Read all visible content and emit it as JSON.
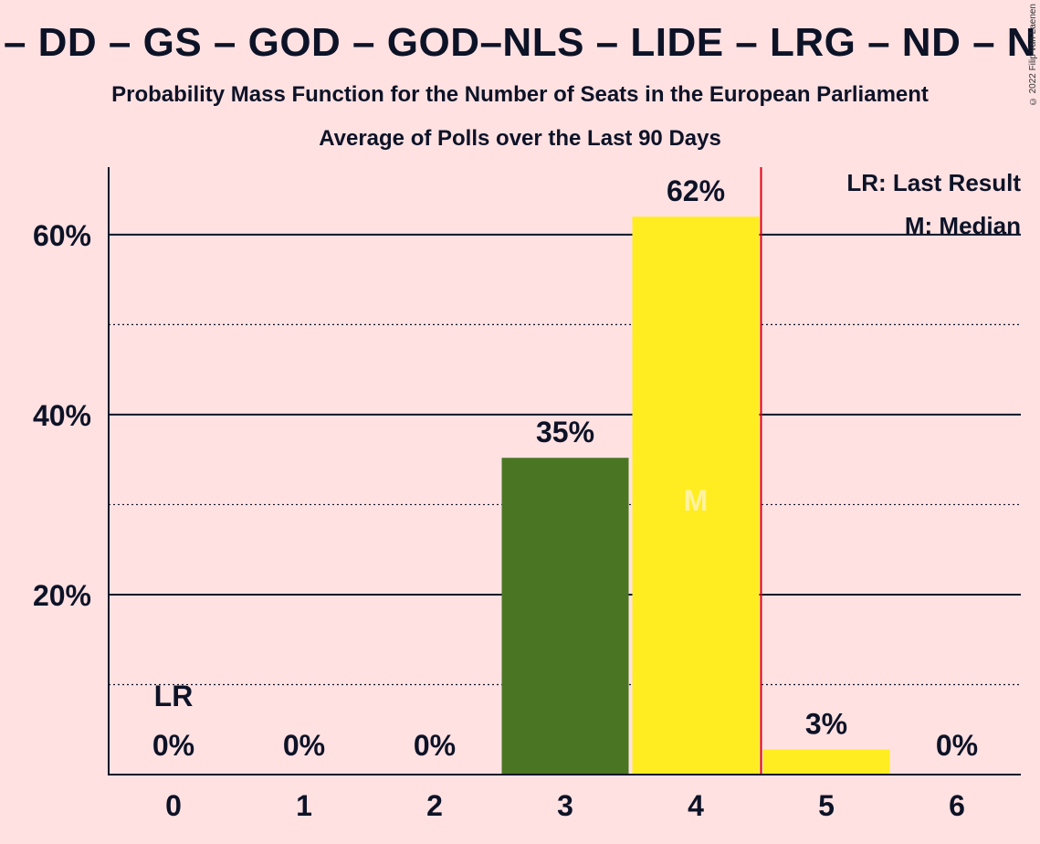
{
  "title": "– DD – GS – GOD – GOD–NLS – LIDE – LRG – ND – N",
  "subtitle": "Probability Mass Function for the Number of Seats in the European Parliament",
  "subtitle2": "Average of Polls over the Last 90 Days",
  "copyright": "© 2022 Filip van Laenen",
  "legend": {
    "last_result": "LR: Last Result",
    "median": "M: Median"
  },
  "chart_data": {
    "type": "bar",
    "categories": [
      "0",
      "1",
      "2",
      "3",
      "4",
      "5",
      "6"
    ],
    "values": [
      0,
      0,
      0,
      35.2,
      62,
      2.8,
      0
    ],
    "data_labels": [
      "0%",
      "0%",
      "0%",
      "35%",
      "62%",
      "3%",
      "0%"
    ],
    "bar_colors": [
      "#4a7623",
      "#4a7623",
      "#4a7623",
      "#4a7623",
      "#ffed21",
      "#ffed21",
      "#ffed21"
    ],
    "ylim": [
      0,
      67.5
    ],
    "y_ticks": [
      20,
      40,
      60
    ],
    "y_tick_labels": [
      "20%",
      "40%",
      "60%"
    ],
    "y_minor_gridlines": [
      10,
      30,
      50
    ],
    "last_result_index": 0,
    "last_result_label": "LR",
    "median_index": 4,
    "median_label": "M",
    "majority_line_after_index": 4,
    "colors": {
      "background": "#ffe1e2",
      "axis": "#0d1327",
      "majority_line": "#e3000f"
    }
  }
}
